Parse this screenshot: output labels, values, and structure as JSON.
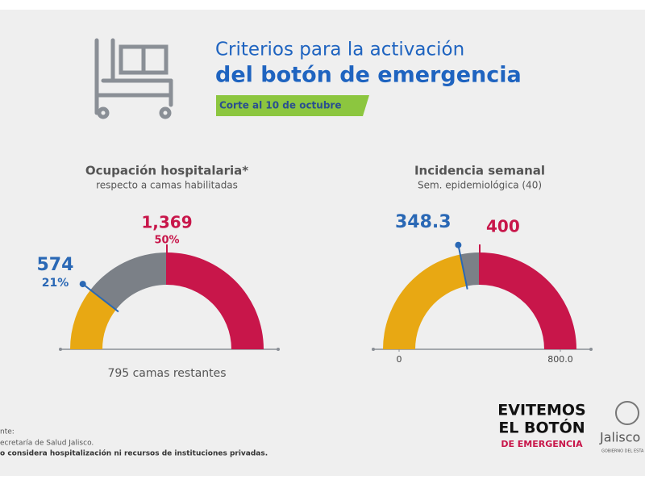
{
  "header": {
    "title_line1": "Criterios para la activación",
    "title_line2": "del botón de emergencia",
    "date": "Corte al 10 de octubre"
  },
  "chart_data": [
    {
      "type": "gauge",
      "title": "Ocupación hospitalaria*",
      "subtitle": "respecto a camas habilitadas",
      "ylim": [
        0,
        100
      ],
      "value": 21,
      "value_label": "21%",
      "count": 574,
      "threshold": 50,
      "threshold_label": "50%",
      "threshold_count": 1369,
      "threshold_count_label": "1,369",
      "note": "795 camas restantes",
      "colors": {
        "value": "#e8a813",
        "gap": "#7b8087",
        "above": "#c8164a",
        "marker": "#2a68b5"
      }
    },
    {
      "type": "gauge",
      "title": "Incidencia semanal",
      "subtitle": "Sem. epidemiológica (40)",
      "ylim": [
        0,
        800
      ],
      "yticks": [
        0,
        {
          "value": 800,
          "label": "800.0"
        }
      ],
      "value": 348.3,
      "threshold": 400,
      "colors": {
        "value": "#e8a813",
        "gap": "#7b8087",
        "above": "#c8164a",
        "marker": "#2a68b5"
      }
    }
  ],
  "footer": {
    "source_label": "nte:",
    "source": "ecretaría de Salud Jalisco.",
    "disclaimer": "o considera hospitalización ni recursos de instituciones privadas.",
    "logo_line1": "EVITEMOS",
    "logo_line2": "EL BOTÓN",
    "logo_line3": "DE EMERGENCIA",
    "gov_name": "Jalisco",
    "gov_sub": "GOBIERNO DEL ESTA"
  }
}
